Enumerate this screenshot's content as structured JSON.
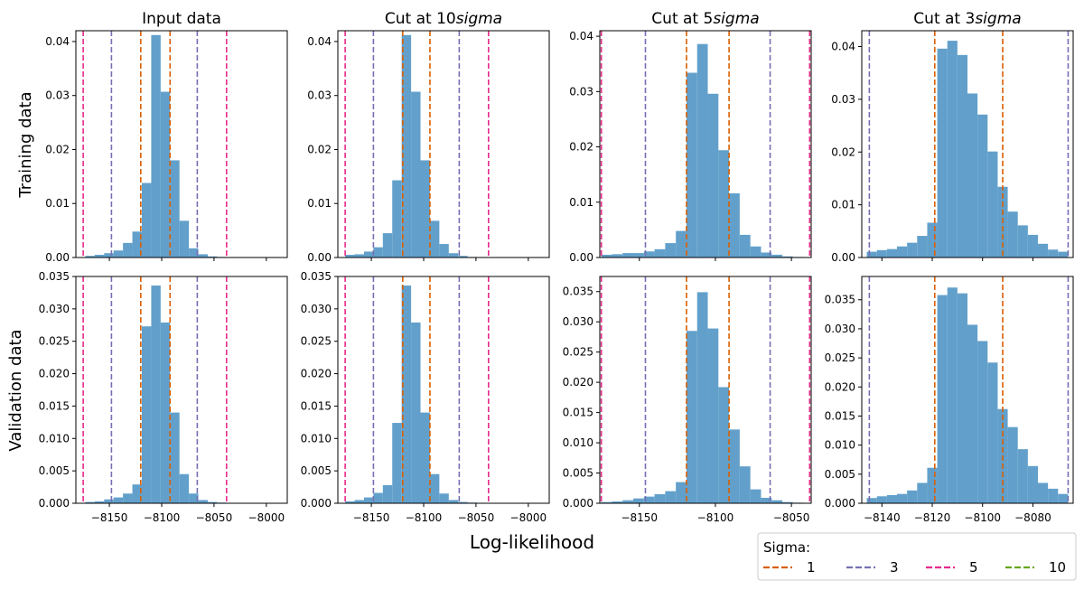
{
  "figure": {
    "xlabel": "Log-likelihood",
    "row_labels": [
      "Training data",
      "Validation data"
    ],
    "bar_color": "#62a0cb",
    "legend": {
      "title": "Sigma:",
      "entries": [
        {
          "label": "1",
          "color": "#d95f02"
        },
        {
          "label": "3",
          "color": "#7570b3"
        },
        {
          "label": "5",
          "color": "#e7298a"
        },
        {
          "label": "10",
          "color": "#66a61e"
        }
      ],
      "placement": "lower-right, below plots"
    }
  },
  "chart_data": [
    {
      "type": "bar",
      "title": "Input data",
      "title_math": "",
      "row": 0,
      "col": 0,
      "xlim": [
        -8182,
        -7980
      ],
      "ylim": [
        0,
        0.042
      ],
      "yticks": [
        0.0,
        0.01,
        0.02,
        0.03,
        0.04
      ],
      "ytick_decimals": 2,
      "xticks": [
        -8150,
        -8100,
        -8050,
        -8000
      ],
      "show_xticklabels": false,
      "bin_edges": [
        -8200,
        -8191,
        -8182,
        -8173,
        -8164,
        -8155,
        -8146,
        -8137,
        -8128,
        -8119,
        -8110,
        -8101,
        -8092,
        -8083,
        -8074,
        -8065,
        -8056,
        -8047,
        -8038,
        -8029,
        -8020
      ],
      "values": [
        0,
        0,
        0,
        0.0003,
        0.0005,
        0.0008,
        0.0013,
        0.0027,
        0.0048,
        0.0138,
        0.0412,
        0.0307,
        0.018,
        0.0068,
        0.0017,
        0.0006,
        0.0002,
        0.0001,
        0,
        0
      ],
      "vlines": [
        {
          "sigma": "1",
          "x": -8120
        },
        {
          "sigma": "1",
          "x": -8092
        },
        {
          "sigma": "3",
          "x": -8148
        },
        {
          "sigma": "3",
          "x": -8066
        },
        {
          "sigma": "5",
          "x": -8175
        },
        {
          "sigma": "5",
          "x": -8038
        }
      ]
    },
    {
      "type": "bar",
      "title": "Cut at 10",
      "title_math": "sigma",
      "row": 0,
      "col": 1,
      "xlim": [
        -8182,
        -7980
      ],
      "ylim": [
        0,
        0.042
      ],
      "yticks": [
        0.0,
        0.01,
        0.02,
        0.03,
        0.04
      ],
      "ytick_decimals": 2,
      "xticks": [
        -8150,
        -8100,
        -8050,
        -8000
      ],
      "show_xticklabels": false,
      "bin_edges": [
        -8175,
        -8166,
        -8157,
        -8148,
        -8139,
        -8130,
        -8121,
        -8112,
        -8103,
        -8094,
        -8085,
        -8076,
        -8067,
        -8058,
        -8049
      ],
      "values": [
        0.0005,
        0.0006,
        0.0011,
        0.0019,
        0.0045,
        0.0143,
        0.0412,
        0.0307,
        0.018,
        0.0068,
        0.0025,
        0.0008,
        0.0003,
        0.0001
      ],
      "vlines": [
        {
          "sigma": "1",
          "x": -8120
        },
        {
          "sigma": "1",
          "x": -8094
        },
        {
          "sigma": "3",
          "x": -8148
        },
        {
          "sigma": "3",
          "x": -8066
        },
        {
          "sigma": "5",
          "x": -8175
        },
        {
          "sigma": "5",
          "x": -8038
        }
      ]
    },
    {
      "type": "bar",
      "title": "Cut at 5",
      "title_math": "sigma",
      "row": 0,
      "col": 2,
      "xlim": [
        -8176,
        -8037
      ],
      "ylim": [
        0,
        0.041
      ],
      "yticks": [
        0.0,
        0.01,
        0.02,
        0.03,
        0.04
      ],
      "ytick_decimals": 2,
      "xticks": [
        -8150,
        -8100,
        -8050
      ],
      "show_xticklabels": false,
      "bin_edges": [
        -8175,
        -8168,
        -8161,
        -8154,
        -8147,
        -8140,
        -8133,
        -8126,
        -8119,
        -8112,
        -8105,
        -8098,
        -8091,
        -8084,
        -8077,
        -8070,
        -8063,
        -8056,
        -8049,
        -8042
      ],
      "values": [
        0.0005,
        0.0006,
        0.0008,
        0.0008,
        0.0011,
        0.0015,
        0.0026,
        0.0048,
        0.0334,
        0.0386,
        0.0296,
        0.0194,
        0.0116,
        0.0041,
        0.002,
        0.0009,
        0.0005,
        0.0002,
        0.0001
      ],
      "vlines": [
        {
          "sigma": "1",
          "x": -8119
        },
        {
          "sigma": "1",
          "x": -8091
        },
        {
          "sigma": "3",
          "x": -8146
        },
        {
          "sigma": "3",
          "x": -8064
        },
        {
          "sigma": "5",
          "x": -8175
        },
        {
          "sigma": "5",
          "x": -8038
        }
      ]
    },
    {
      "type": "bar",
      "title": "Cut at 3",
      "title_math": "sigma",
      "row": 0,
      "col": 3,
      "xlim": [
        -8148,
        -8064
      ],
      "ylim": [
        0,
        0.043
      ],
      "yticks": [
        0.0,
        0.01,
        0.02,
        0.03,
        0.04
      ],
      "ytick_decimals": 2,
      "xticks": [
        -8140,
        -8120,
        -8100,
        -8080
      ],
      "show_xticklabels": false,
      "bin_edges": [
        -8146,
        -8142,
        -8138,
        -8134,
        -8130,
        -8126,
        -8122,
        -8118,
        -8114,
        -8110,
        -8106,
        -8102,
        -8098,
        -8094,
        -8090,
        -8086,
        -8082,
        -8078,
        -8074,
        -8070,
        -8066
      ],
      "values": [
        0.0011,
        0.0014,
        0.0016,
        0.0021,
        0.0028,
        0.0041,
        0.0066,
        0.0396,
        0.0411,
        0.0384,
        0.0311,
        0.0271,
        0.0201,
        0.0134,
        0.0087,
        0.0061,
        0.0043,
        0.0026,
        0.0015,
        0.0011
      ],
      "vlines": [
        {
          "sigma": "3",
          "x": -8145
        },
        {
          "sigma": "3",
          "x": -8066
        },
        {
          "sigma": "1",
          "x": -8119
        },
        {
          "sigma": "1",
          "x": -8092
        }
      ]
    },
    {
      "type": "bar",
      "title": "",
      "title_math": "",
      "row": 1,
      "col": 0,
      "xlim": [
        -8182,
        -7980
      ],
      "ylim": [
        0,
        0.035
      ],
      "yticks": [
        0.0,
        0.005,
        0.01,
        0.015,
        0.02,
        0.025,
        0.03,
        0.035
      ],
      "ytick_decimals": 3,
      "xticks": [
        -8150,
        -8100,
        -8050,
        -8000
      ],
      "show_xticklabels": true,
      "bin_edges": [
        -8200,
        -8191,
        -8182,
        -8173,
        -8164,
        -8155,
        -8146,
        -8137,
        -8128,
        -8119,
        -8110,
        -8101,
        -8092,
        -8083,
        -8074,
        -8065,
        -8056,
        -8047,
        -8038,
        -8029,
        -8020
      ],
      "values": [
        0,
        0,
        0,
        0.0002,
        0.0003,
        0.0006,
        0.0009,
        0.0015,
        0.0029,
        0.0273,
        0.0336,
        0.0279,
        0.014,
        0.0045,
        0.0015,
        0.0005,
        0.0002,
        0.0001,
        0,
        0
      ],
      "vlines": [
        {
          "sigma": "1",
          "x": -8120
        },
        {
          "sigma": "1",
          "x": -8092
        },
        {
          "sigma": "3",
          "x": -8148
        },
        {
          "sigma": "3",
          "x": -8066
        },
        {
          "sigma": "5",
          "x": -8175
        },
        {
          "sigma": "5",
          "x": -8038
        }
      ]
    },
    {
      "type": "bar",
      "title": "",
      "title_math": "",
      "row": 1,
      "col": 1,
      "xlim": [
        -8182,
        -7980
      ],
      "ylim": [
        0,
        0.035
      ],
      "yticks": [
        0.0,
        0.005,
        0.01,
        0.015,
        0.02,
        0.025,
        0.03,
        0.035
      ],
      "ytick_decimals": 3,
      "xticks": [
        -8150,
        -8100,
        -8050,
        -8000
      ],
      "show_xticklabels": true,
      "bin_edges": [
        -8175,
        -8166,
        -8157,
        -8148,
        -8139,
        -8130,
        -8121,
        -8112,
        -8103,
        -8094,
        -8085,
        -8076,
        -8067,
        -8058,
        -8049
      ],
      "values": [
        0.0003,
        0.0005,
        0.0009,
        0.0016,
        0.0028,
        0.0124,
        0.0336,
        0.0279,
        0.014,
        0.0045,
        0.0015,
        0.0005,
        0.0002,
        0.0001
      ],
      "vlines": [
        {
          "sigma": "1",
          "x": -8120
        },
        {
          "sigma": "1",
          "x": -8094
        },
        {
          "sigma": "3",
          "x": -8148
        },
        {
          "sigma": "3",
          "x": -8066
        },
        {
          "sigma": "5",
          "x": -8175
        },
        {
          "sigma": "5",
          "x": -8038
        }
      ]
    },
    {
      "type": "bar",
      "title": "",
      "title_math": "",
      "row": 1,
      "col": 2,
      "xlim": [
        -8176,
        -8037
      ],
      "ylim": [
        0,
        0.0375
      ],
      "yticks": [
        0.0,
        0.005,
        0.01,
        0.015,
        0.02,
        0.025,
        0.03,
        0.035
      ],
      "ytick_decimals": 3,
      "xticks": [
        -8150,
        -8100,
        -8050
      ],
      "show_xticklabels": true,
      "bin_edges": [
        -8175,
        -8168,
        -8161,
        -8154,
        -8147,
        -8140,
        -8133,
        -8126,
        -8119,
        -8112,
        -8105,
        -8098,
        -8091,
        -8084,
        -8077,
        -8070,
        -8063,
        -8056,
        -8049,
        -8042
      ],
      "values": [
        0.0002,
        0.0003,
        0.0005,
        0.0008,
        0.0011,
        0.0015,
        0.002,
        0.0035,
        0.0285,
        0.0349,
        0.0289,
        0.0192,
        0.0122,
        0.0061,
        0.0023,
        0.0009,
        0.0005,
        0.0002,
        0.0001
      ],
      "vlines": [
        {
          "sigma": "1",
          "x": -8119
        },
        {
          "sigma": "1",
          "x": -8091
        },
        {
          "sigma": "3",
          "x": -8146
        },
        {
          "sigma": "3",
          "x": -8064
        },
        {
          "sigma": "5",
          "x": -8175
        },
        {
          "sigma": "5",
          "x": -8038
        }
      ]
    },
    {
      "type": "bar",
      "title": "",
      "title_math": "",
      "row": 1,
      "col": 3,
      "xlim": [
        -8148,
        -8064
      ],
      "ylim": [
        0,
        0.039
      ],
      "yticks": [
        0.0,
        0.005,
        0.01,
        0.015,
        0.02,
        0.025,
        0.03,
        0.035
      ],
      "ytick_decimals": 3,
      "xticks": [
        -8140,
        -8120,
        -8100,
        -8080
      ],
      "show_xticklabels": true,
      "bin_edges": [
        -8146,
        -8142,
        -8138,
        -8134,
        -8130,
        -8126,
        -8122,
        -8118,
        -8114,
        -8110,
        -8106,
        -8102,
        -8098,
        -8094,
        -8090,
        -8086,
        -8082,
        -8078,
        -8074,
        -8070,
        -8066
      ],
      "values": [
        0.0009,
        0.0012,
        0.0014,
        0.0016,
        0.0022,
        0.0035,
        0.0061,
        0.0358,
        0.0371,
        0.0361,
        0.0307,
        0.0279,
        0.0242,
        0.0162,
        0.0131,
        0.0093,
        0.0064,
        0.0035,
        0.0025,
        0.0016
      ],
      "vlines": [
        {
          "sigma": "3",
          "x": -8145
        },
        {
          "sigma": "3",
          "x": -8066
        },
        {
          "sigma": "1",
          "x": -8119
        },
        {
          "sigma": "1",
          "x": -8092
        }
      ]
    }
  ]
}
